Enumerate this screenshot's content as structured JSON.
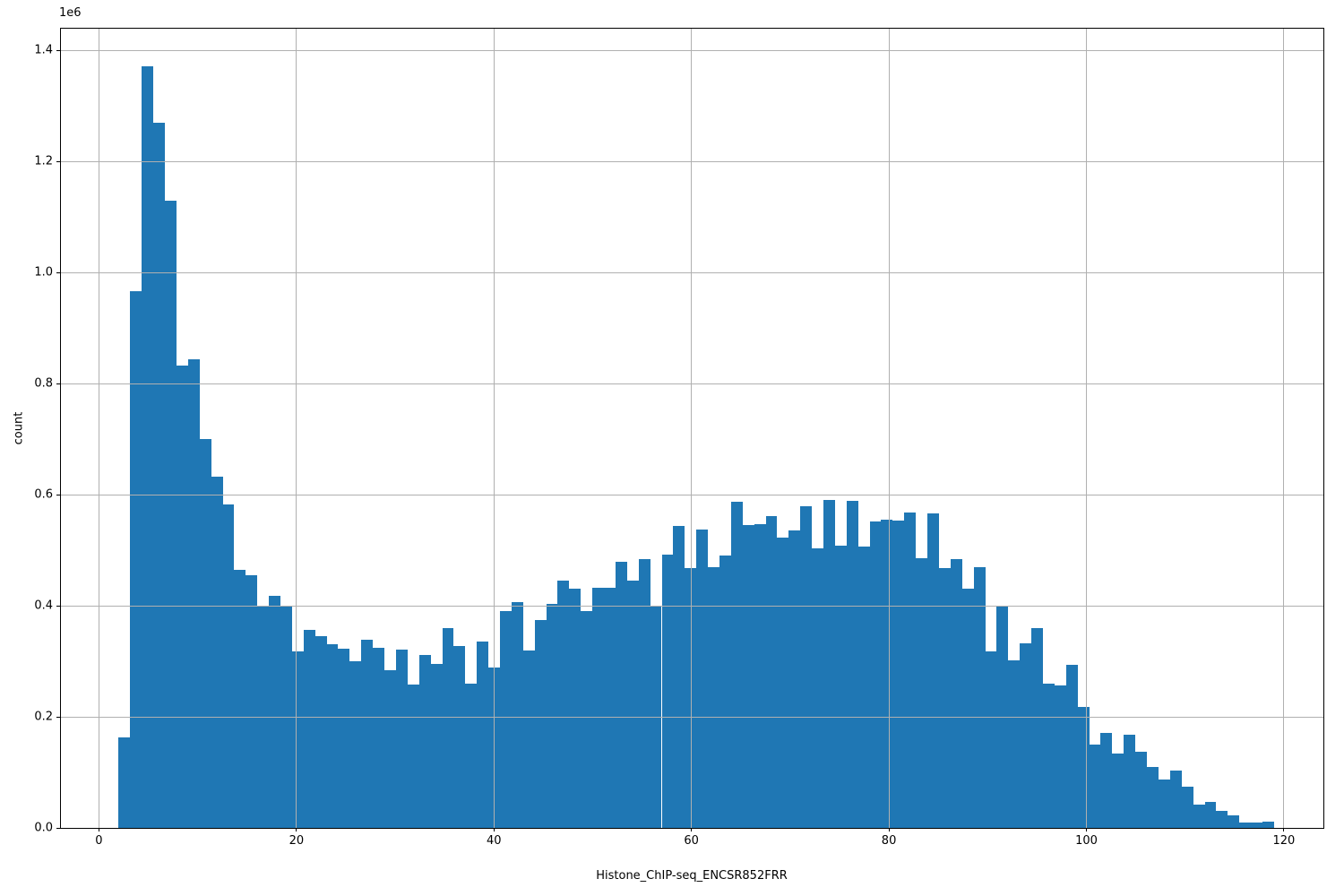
{
  "figure": {
    "background": "#ffffff"
  },
  "chart_data": {
    "type": "bar",
    "subtype": "histogram",
    "title": "",
    "xlabel": "Histone_ChIP-seq_ENCSR852FRR",
    "ylabel": "count",
    "y_offset_text": "1e6",
    "bar_color": "#1f77b4",
    "grid_color": "#b0b0b0",
    "spine_color": "#000000",
    "text_color": "#000000",
    "grid": true,
    "legend_position": "none",
    "bin_start": 2.0,
    "bin_width": 1.17,
    "xlim": [
      -3.85,
      124.0
    ],
    "ylim": [
      0,
      1439000
    ],
    "xticks": [
      {
        "label": "0",
        "value": 0
      },
      {
        "label": "20",
        "value": 20
      },
      {
        "label": "40",
        "value": 40
      },
      {
        "label": "60",
        "value": 60
      },
      {
        "label": "80",
        "value": 80
      },
      {
        "label": "100",
        "value": 100
      },
      {
        "label": "120",
        "value": 120
      }
    ],
    "yticks": [
      {
        "label": "0.0",
        "value": 0
      },
      {
        "label": "0.2",
        "value": 200000
      },
      {
        "label": "0.4",
        "value": 400000
      },
      {
        "label": "0.6",
        "value": 600000
      },
      {
        "label": "0.8",
        "value": 800000
      },
      {
        "label": "1.0",
        "value": 1000000
      },
      {
        "label": "1.2",
        "value": 1200000
      },
      {
        "label": "1.4",
        "value": 1400000
      }
    ],
    "values": [
      163000,
      967000,
      1372000,
      1270000,
      1130000,
      833000,
      843000,
      700000,
      633000,
      582000,
      465000,
      455000,
      400000,
      418000,
      398000,
      318000,
      356000,
      345000,
      330000,
      323000,
      300000,
      339000,
      324000,
      284000,
      321000,
      258000,
      311000,
      296000,
      360000,
      328000,
      260000,
      336000,
      289000,
      390000,
      407000,
      319000,
      374000,
      403000,
      446000,
      430000,
      391000,
      432000,
      432000,
      479000,
      446000,
      484000,
      399000,
      492000,
      544000,
      468000,
      538000,
      469000,
      490000,
      588000,
      546000,
      547000,
      562000,
      523000,
      536000,
      579000,
      504000,
      590000,
      508000,
      589000,
      506000,
      552000,
      555000,
      553000,
      568000,
      485000,
      567000,
      468000,
      484000,
      430000,
      469000,
      318000,
      400000,
      302000,
      333000,
      359000,
      260000,
      256000,
      294000,
      217000,
      150000,
      171000,
      134000,
      168000,
      137000,
      109000,
      87000,
      103000,
      74000,
      42000,
      46000,
      30000,
      23000,
      9000,
      9000,
      12000
    ]
  }
}
